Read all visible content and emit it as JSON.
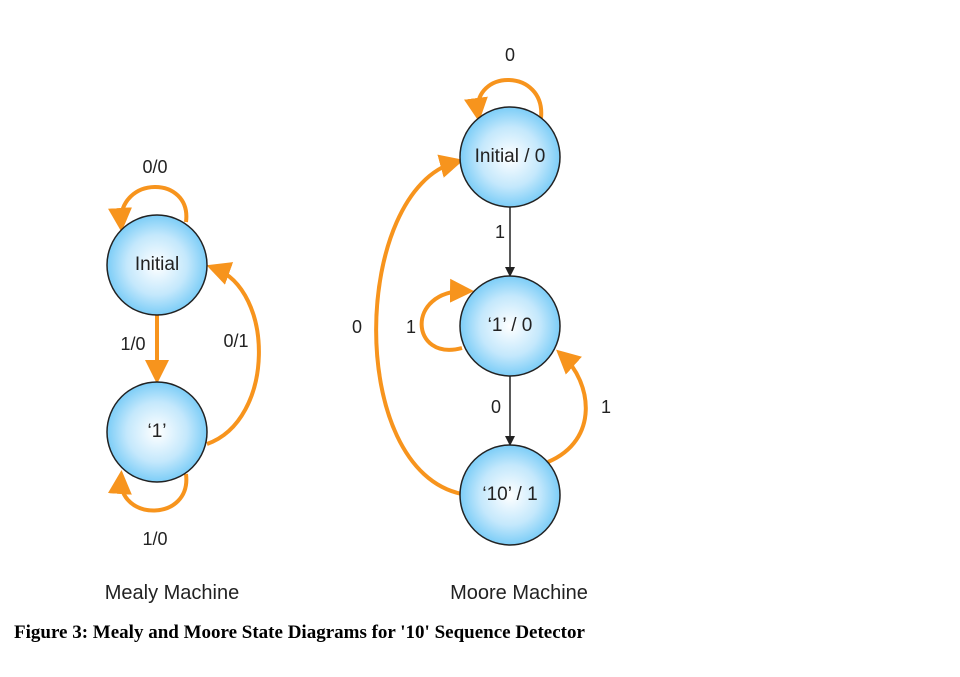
{
  "colors": {
    "arrow": "#f7941d",
    "node_fill": "#a8dcfa",
    "node_center": "#ffffff",
    "node_edge": "#6cc4f5"
  },
  "mealy": {
    "caption": "Mealy Machine",
    "states": [
      "Initial",
      "‘1’"
    ],
    "transitions": {
      "init_self": "0/0",
      "init_to_1": "1/0",
      "one_to_init": "0/1",
      "one_self": "1/0"
    }
  },
  "moore": {
    "caption": "Moore Machine",
    "states": [
      "Initial / 0",
      "‘1’ / 0",
      "‘10’ / 1"
    ],
    "transitions": {
      "init_self": "0",
      "init_to_1": "1",
      "one_self": "1",
      "one_to_10": "0",
      "ten_to_1": "1",
      "ten_to_init": "0"
    }
  },
  "figure_caption": "Figure 3: Mealy and Moore State Diagrams for '10' Sequence Detector"
}
